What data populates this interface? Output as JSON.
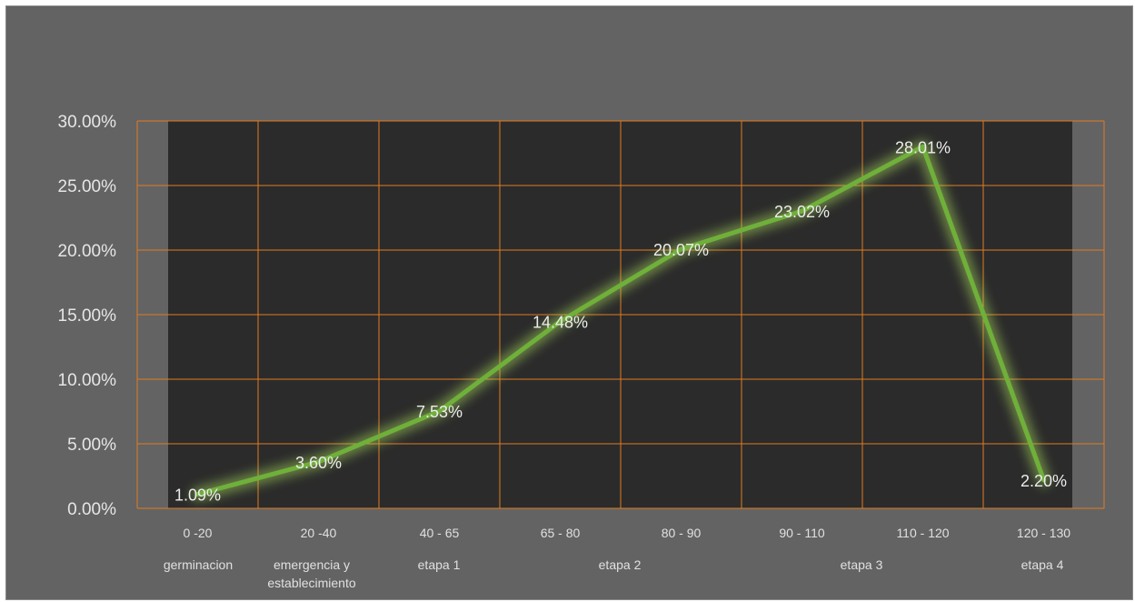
{
  "chart_data": {
    "type": "line",
    "categories": [
      "0 -20",
      "20 -40",
      "40 - 65",
      "65 - 80",
      "80 - 90",
      "90 - 110",
      "110 - 120",
      "120 - 130"
    ],
    "phase_labels": [
      [
        "germinacion"
      ],
      [
        "emergencia y",
        "establecimiento"
      ],
      [
        "etapa 1"
      ],
      [
        "etapa 2"
      ],
      [
        "etapa 3"
      ],
      [
        "etapa 4"
      ]
    ],
    "series": [
      {
        "values": [
          1.09,
          3.6,
          7.53,
          14.48,
          20.07,
          23.02,
          28.01,
          2.2
        ],
        "data_labels": [
          "1.09%",
          "3.60%",
          "7.53%",
          "14.48%",
          "20.07%",
          "23.02%",
          "28.01%",
          "2.20%"
        ]
      }
    ],
    "yticks": [
      "0.00%",
      "5.00%",
      "10.00%",
      "15.00%",
      "20.00%",
      "25.00%",
      "30.00%"
    ],
    "ylim": [
      0,
      30
    ],
    "grid": true,
    "colors": {
      "background": "#636363",
      "plot_area": "#2b2b2b",
      "gridlines": "#e07b20",
      "line": "#6fb03a",
      "glow": "#a8d85a"
    }
  }
}
